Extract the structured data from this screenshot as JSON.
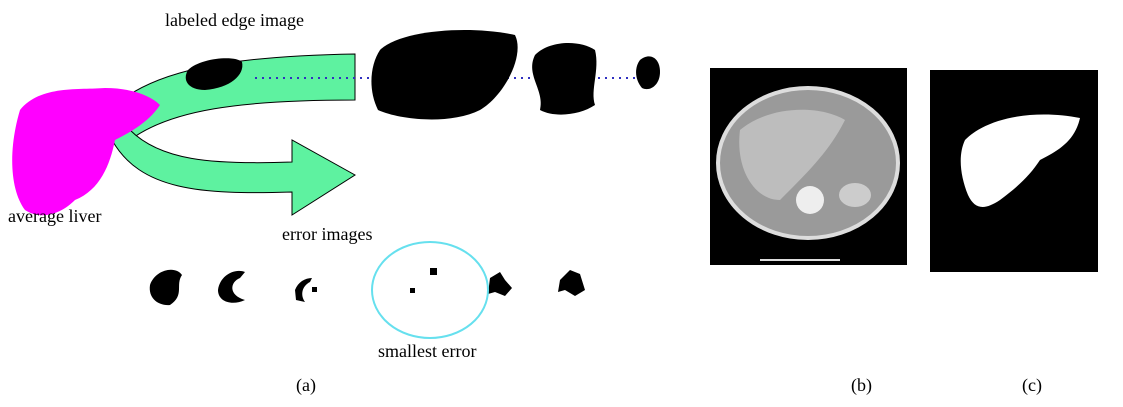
{
  "panel_a": {
    "labels": {
      "edge": "labeled edge image",
      "average": "average liver",
      "errors": "error images",
      "smallest": "smallest error"
    }
  },
  "captions": [
    "(a)",
    "(b)",
    "(c)"
  ]
}
